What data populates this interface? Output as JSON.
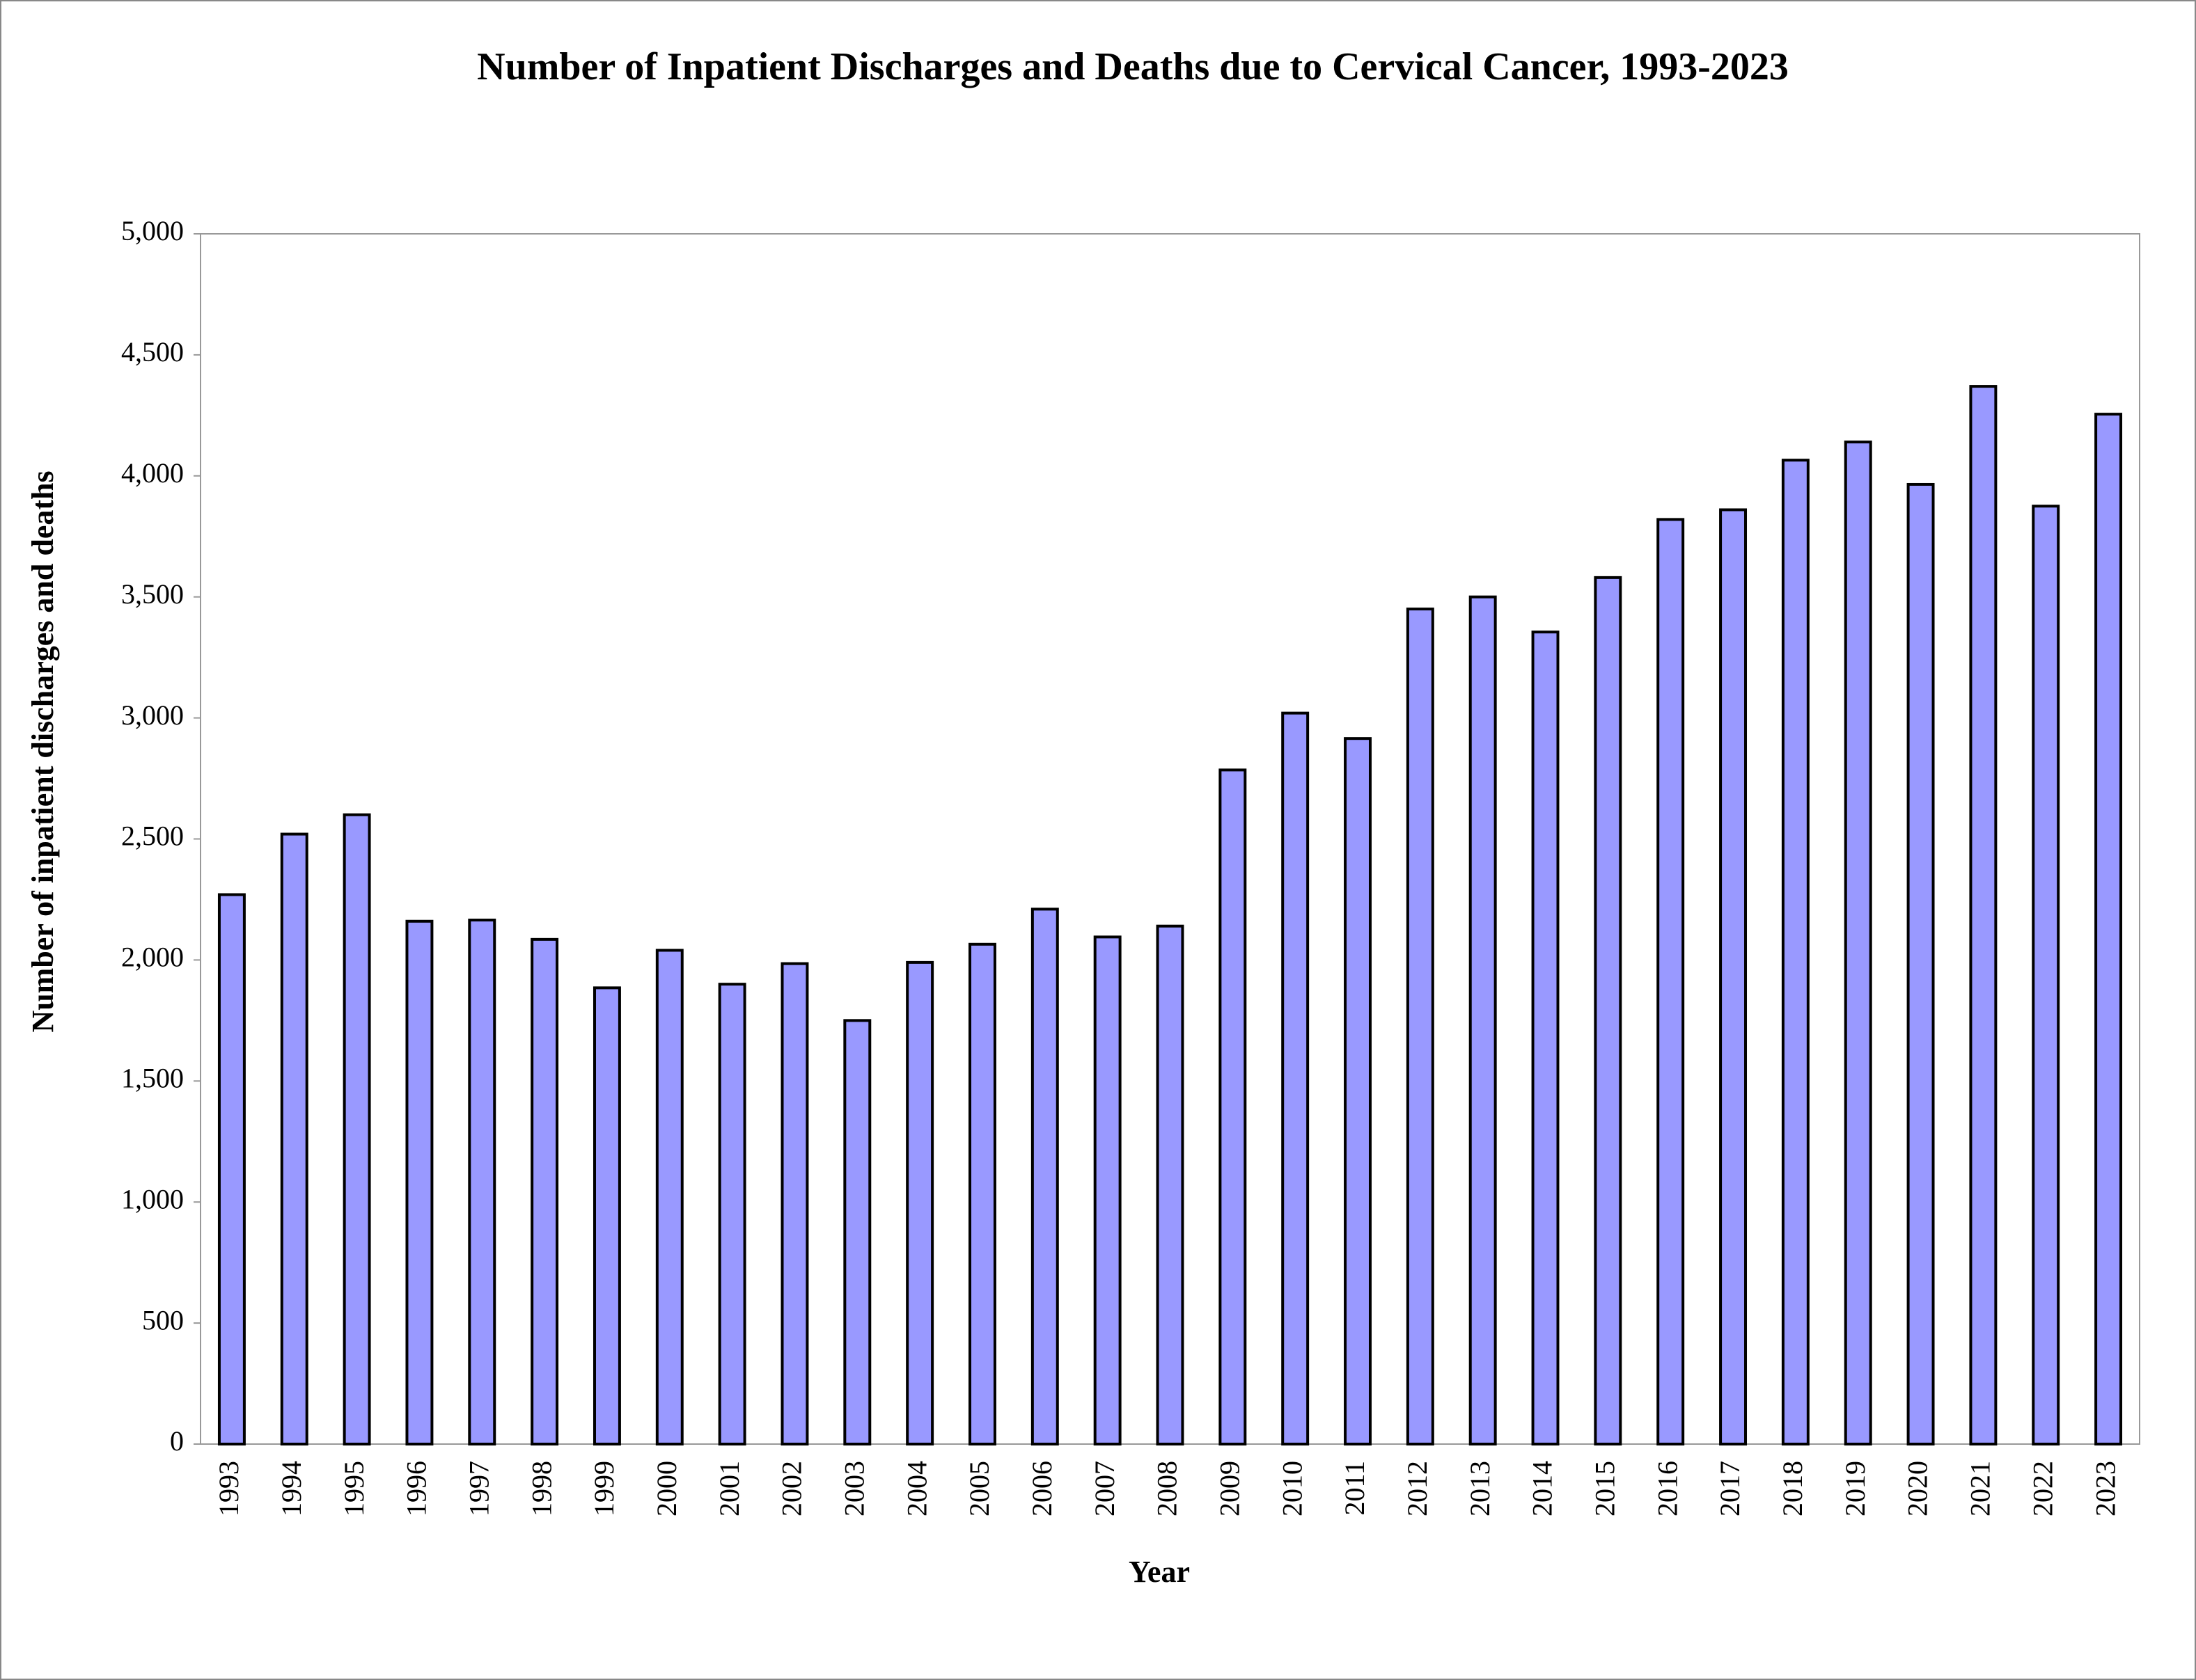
{
  "chart_data": {
    "type": "bar",
    "title": "Number of Inpatient Discharges and Deaths due to Cervical Cancer, 1993-2023",
    "x_label": "Year",
    "y_label": "Number of inpatient discharges and deaths",
    "categories": [
      "1993",
      "1994",
      "1995",
      "1996",
      "1997",
      "1998",
      "1999",
      "2000",
      "2001",
      "2002",
      "2003",
      "2004",
      "2005",
      "2006",
      "2007",
      "2008",
      "2009",
      "2010",
      "2011",
      "2012",
      "2013",
      "2014",
      "2015",
      "2016",
      "2017",
      "2018",
      "2019",
      "2020",
      "2021",
      "2022",
      "2023"
    ],
    "values": [
      2270,
      2520,
      2600,
      2160,
      2165,
      2085,
      1885,
      2040,
      1900,
      1985,
      1750,
      1990,
      2065,
      2210,
      2095,
      2140,
      2785,
      3020,
      2915,
      3450,
      3500,
      3355,
      3580,
      3820,
      3860,
      4065,
      4140,
      3965,
      4370,
      3875,
      4255
    ],
    "color": "#9999ff",
    "ylim": [
      0,
      5000
    ],
    "yticks": [
      0,
      500,
      {
        "value": 1000,
        "label": "1,000"
      },
      {
        "value": 1500,
        "label": "1,500"
      },
      {
        "value": 2000,
        "label": "2,000"
      },
      {
        "value": 2500,
        "label": "2,500"
      },
      {
        "value": 3000,
        "label": "3,000"
      },
      {
        "value": 3500,
        "label": "3,500"
      },
      {
        "value": 4000,
        "label": "4,000"
      },
      {
        "value": 4500,
        "label": "4,500"
      },
      {
        "value": 5000,
        "label": "5,000"
      }
    ],
    "grid": false
  }
}
